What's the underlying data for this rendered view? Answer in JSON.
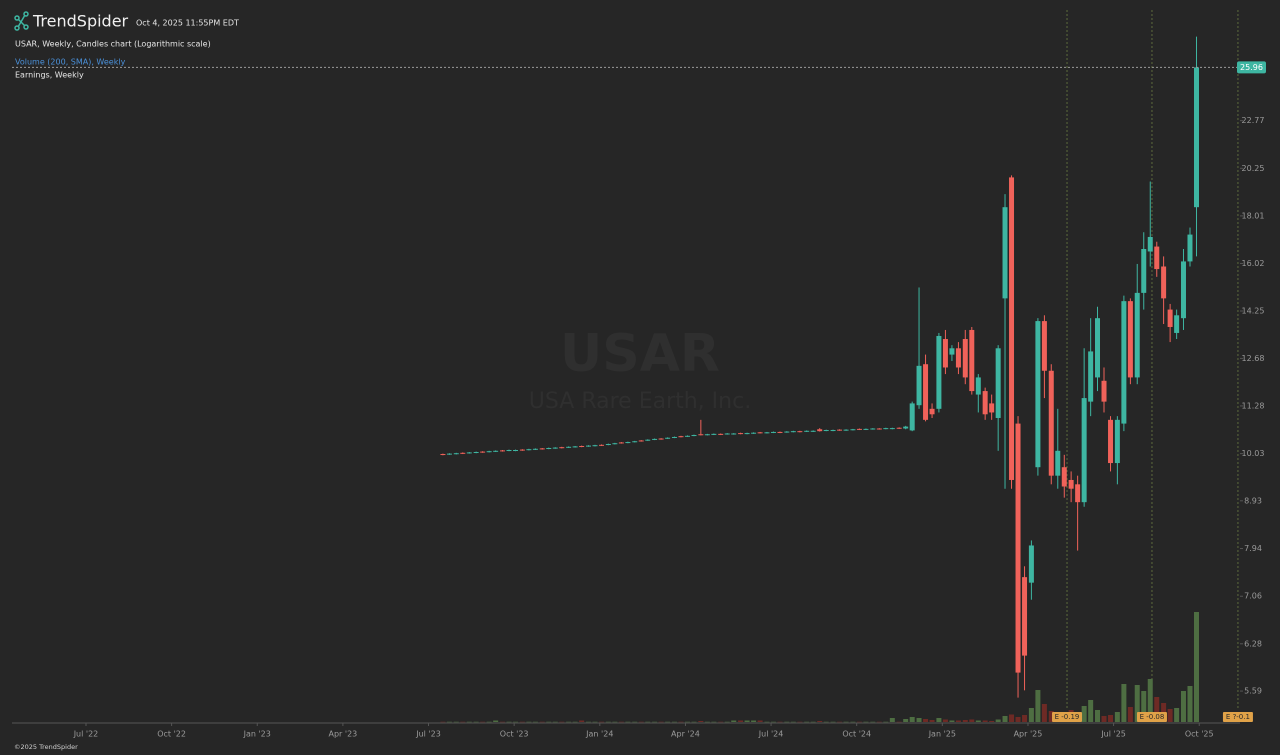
{
  "header": {
    "brand": "TrendSpider",
    "timestamp": "Oct 4, 2025 11:55PM EDT",
    "indicators": [
      "Volume (200, SMA), Weekly",
      "Earnings, Weekly"
    ]
  },
  "footer": "©2025 TrendSpider",
  "chart_data": {
    "type": "candlestick",
    "title": "USAR, Weekly, Candles chart (Logarithmic scale)",
    "watermark": "USAR",
    "watermark_subtitle": "USA Rare Earth, Inc.",
    "log_scale": true,
    "up_color": "#3eb6a2",
    "down_color": "#f0625a",
    "volume_up_color": "#4e6e42",
    "volume_down_color": "#6e2a25",
    "xlim": [
      2022.284,
      2025.869
    ],
    "ylim": [
      5.18,
      29.9
    ],
    "volume_lim": [
      0,
      28
    ],
    "xticks": [
      {
        "value": 2022.5,
        "label": "Jul '22"
      },
      {
        "value": 2022.75,
        "label": "Oct '22"
      },
      {
        "value": 2023.0,
        "label": "Jan '23"
      },
      {
        "value": 2023.25,
        "label": "Apr '23"
      },
      {
        "value": 2023.5,
        "label": "Jul '23"
      },
      {
        "value": 2023.75,
        "label": "Oct '23"
      },
      {
        "value": 2024.0,
        "label": "Jan '24"
      },
      {
        "value": 2024.25,
        "label": "Apr '24"
      },
      {
        "value": 2024.5,
        "label": "Jul '24"
      },
      {
        "value": 2024.75,
        "label": "Oct '24"
      },
      {
        "value": 2025.0,
        "label": "Jan '25"
      },
      {
        "value": 2025.25,
        "label": "Apr '25"
      },
      {
        "value": 2025.5,
        "label": "Jul '25"
      },
      {
        "value": 2025.75,
        "label": "Oct '25"
      }
    ],
    "yticks": [
      5.59,
      6.28,
      7.06,
      7.94,
      8.93,
      10.03,
      11.28,
      12.68,
      14.25,
      16.02,
      18.01,
      20.25,
      22.77
    ],
    "last_price": 25.96,
    "earnings": [
      {
        "x": 2025.364,
        "label": "E -0.19"
      },
      {
        "x": 2025.612,
        "label": "E -0.08"
      },
      {
        "x": 2025.863,
        "label": "E ?-0.1"
      }
    ],
    "x": [
      2023.542,
      2023.561,
      2023.581,
      2023.6,
      2023.619,
      2023.639,
      2023.658,
      2023.677,
      2023.696,
      2023.716,
      2023.735,
      2023.754,
      2023.774,
      2023.793,
      2023.812,
      2023.832,
      2023.851,
      2023.87,
      2023.889,
      2023.909,
      2023.928,
      2023.947,
      2023.967,
      2023.986,
      2024.005,
      2024.025,
      2024.044,
      2024.063,
      2024.082,
      2024.102,
      2024.121,
      2024.14,
      2024.16,
      2024.179,
      2024.198,
      2024.218,
      2024.237,
      2024.256,
      2024.275,
      2024.295,
      2024.314,
      2024.333,
      2024.353,
      2024.372,
      2024.391,
      2024.411,
      2024.43,
      2024.449,
      2024.468,
      2024.488,
      2024.507,
      2024.526,
      2024.546,
      2024.565,
      2024.584,
      2024.604,
      2024.623,
      2024.642,
      2024.661,
      2024.681,
      2024.7,
      2024.719,
      2024.739,
      2024.758,
      2024.777,
      2024.797,
      2024.816,
      2024.835,
      2024.854,
      2024.874,
      2024.893,
      2024.912,
      2024.932,
      2024.951,
      2024.97,
      2024.99,
      2025.009,
      2025.028,
      2025.047,
      2025.067,
      2025.086,
      2025.105,
      2025.125,
      2025.144,
      2025.163,
      2025.183,
      2025.202,
      2025.221,
      2025.24,
      2025.26,
      2025.279,
      2025.298,
      2025.318,
      2025.337,
      2025.356,
      2025.376,
      2025.395,
      2025.414,
      2025.433,
      2025.453,
      2025.472,
      2025.491,
      2025.511,
      2025.53,
      2025.549,
      2025.569,
      2025.588,
      2025.607,
      2025.626,
      2025.646,
      2025.665,
      2025.684,
      2025.704,
      2025.723,
      2025.742
    ],
    "open": [
      10.02,
      10.01,
      10.02,
      10.05,
      10.04,
      10.05,
      10.08,
      10.07,
      10.08,
      10.11,
      10.1,
      10.1,
      10.13,
      10.12,
      10.13,
      10.16,
      10.15,
      10.16,
      10.19,
      10.18,
      10.19,
      10.22,
      10.21,
      10.22,
      10.25,
      10.25,
      10.27,
      10.31,
      10.3,
      10.32,
      10.36,
      10.36,
      10.38,
      10.41,
      10.41,
      10.43,
      10.47,
      10.46,
      10.48,
      10.52,
      10.5,
      10.51,
      10.53,
      10.52,
      10.52,
      10.55,
      10.53,
      10.54,
      10.57,
      10.55,
      10.56,
      10.58,
      10.57,
      10.58,
      10.6,
      10.59,
      10.59,
      10.65,
      10.61,
      10.61,
      10.64,
      10.62,
      10.63,
      10.66,
      10.64,
      10.65,
      10.67,
      10.66,
      10.66,
      10.69,
      10.67,
      10.62,
      11.3,
      12.5,
      11.2,
      11.2,
      13.3,
      12.8,
      13.0,
      13.3,
      13.6,
      11.6,
      11.7,
      11.35,
      10.95,
      14.7,
      19.8,
      10.8,
      7.4,
      7.3,
      9.7,
      13.9,
      12.3,
      9.5,
      9.7,
      9.4,
      9.3,
      8.9,
      11.4,
      12.1,
      12.0,
      10.9,
      9.8,
      10.8,
      14.6,
      12.1,
      14.9,
      16.5,
      16.7,
      15.9,
      14.3,
      13.5,
      14.0,
      16.1,
      18.4
    ],
    "high": [
      10.03,
      10.04,
      10.05,
      10.06,
      10.07,
      10.08,
      10.09,
      10.1,
      10.11,
      10.12,
      10.13,
      10.13,
      10.14,
      10.15,
      10.16,
      10.17,
      10.18,
      10.19,
      10.2,
      10.21,
      10.22,
      10.23,
      10.24,
      10.25,
      10.26,
      10.28,
      10.3,
      10.32,
      10.33,
      10.35,
      10.37,
      10.39,
      10.41,
      10.42,
      10.44,
      10.46,
      10.48,
      10.49,
      10.51,
      10.9,
      10.53,
      10.54,
      10.54,
      10.55,
      10.55,
      10.56,
      10.56,
      10.57,
      10.58,
      10.58,
      10.59,
      10.59,
      10.6,
      10.61,
      10.61,
      10.62,
      10.62,
      10.68,
      10.64,
      10.64,
      10.65,
      10.65,
      10.66,
      10.67,
      10.67,
      10.68,
      10.68,
      10.69,
      10.69,
      10.7,
      10.74,
      11.4,
      15.1,
      12.8,
      11.35,
      13.5,
      13.6,
      13.1,
      13.2,
      13.6,
      13.7,
      12.2,
      11.8,
      11.6,
      13.1,
      19.0,
      19.9,
      11.0,
      7.6,
      8.1,
      14.0,
      14.1,
      12.5,
      11.2,
      10.0,
      9.6,
      9.5,
      13.0,
      14.0,
      14.4,
      12.4,
      11.0,
      11.0,
      14.8,
      14.7,
      16.0,
      17.3,
      19.6,
      16.9,
      16.3,
      14.5,
      14.3,
      16.6,
      17.5,
      28.0
    ],
    "low": [
      9.99,
      10.0,
      10.01,
      10.02,
      10.03,
      10.04,
      10.05,
      10.06,
      10.07,
      10.08,
      10.09,
      10.09,
      10.1,
      10.11,
      10.12,
      10.13,
      10.14,
      10.15,
      10.16,
      10.17,
      10.18,
      10.19,
      10.2,
      10.21,
      10.22,
      10.24,
      10.26,
      10.28,
      10.29,
      10.31,
      10.33,
      10.35,
      10.37,
      10.38,
      10.4,
      10.42,
      10.44,
      10.45,
      10.47,
      10.49,
      10.49,
      10.5,
      10.5,
      10.51,
      10.51,
      10.52,
      10.52,
      10.53,
      10.54,
      10.54,
      10.55,
      10.55,
      10.56,
      10.57,
      10.57,
      10.58,
      10.58,
      10.59,
      10.6,
      10.6,
      10.61,
      10.61,
      10.62,
      10.63,
      10.63,
      10.64,
      10.64,
      10.65,
      10.65,
      10.66,
      10.65,
      10.6,
      11.2,
      10.86,
      10.95,
      11.1,
      12.2,
      12.6,
      12.2,
      11.9,
      11.6,
      11.1,
      10.9,
      10.9,
      10.1,
      9.2,
      9.2,
      5.5,
      5.6,
      7.0,
      9.5,
      11.5,
      9.3,
      9.2,
      9.0,
      8.9,
      7.9,
      8.8,
      11.0,
      11.7,
      11.1,
      9.6,
      9.3,
      10.6,
      11.9,
      11.9,
      14.3,
      15.9,
      15.5,
      13.8,
      13.2,
      13.3,
      13.6,
      15.9,
      16.3
    ],
    "close": [
      10.0,
      10.03,
      10.04,
      10.03,
      10.06,
      10.07,
      10.06,
      10.09,
      10.1,
      10.09,
      10.12,
      10.12,
      10.11,
      10.14,
      10.15,
      10.14,
      10.17,
      10.18,
      10.17,
      10.2,
      10.21,
      10.2,
      10.23,
      10.24,
      10.23,
      10.27,
      10.29,
      10.29,
      10.32,
      10.34,
      10.34,
      10.38,
      10.4,
      10.39,
      10.43,
      10.45,
      10.45,
      10.48,
      10.5,
      10.5,
      10.52,
      10.53,
      10.51,
      10.54,
      10.54,
      10.53,
      10.55,
      10.56,
      10.55,
      10.57,
      10.58,
      10.56,
      10.59,
      10.6,
      10.58,
      10.61,
      10.61,
      10.6,
      10.63,
      10.63,
      10.62,
      10.64,
      10.65,
      10.64,
      10.66,
      10.67,
      10.65,
      10.68,
      10.68,
      10.67,
      10.72,
      11.35,
      12.45,
      10.9,
      11.05,
      13.4,
      12.4,
      13.0,
      12.4,
      12.1,
      11.7,
      12.1,
      11.05,
      11.1,
      13.0,
      18.4,
      9.4,
      5.85,
      6.1,
      8.0,
      13.9,
      12.3,
      9.5,
      10.1,
      9.25,
      9.2,
      8.9,
      11.5,
      12.9,
      14.0,
      11.4,
      9.8,
      10.9,
      14.6,
      12.1,
      14.9,
      16.6,
      17.1,
      15.8,
      14.7,
      13.7,
      14.1,
      16.1,
      17.2,
      25.96
    ],
    "volume": [
      0.05,
      0.05,
      0.05,
      0.05,
      0.05,
      0.05,
      0.05,
      0.05,
      0.3,
      0.05,
      0.05,
      0.05,
      0.05,
      0.05,
      0.05,
      0.05,
      0.05,
      0.05,
      0.05,
      0.05,
      0.05,
      0.3,
      0.05,
      0.05,
      0.05,
      0.05,
      0.05,
      0.05,
      0.05,
      0.05,
      0.05,
      0.05,
      0.05,
      0.05,
      0.05,
      0.05,
      0.05,
      0.05,
      0.05,
      0.2,
      0.05,
      0.05,
      0.05,
      0.05,
      0.3,
      0.3,
      0.3,
      0.3,
      0.3,
      0.05,
      0.05,
      0.05,
      0.05,
      0.05,
      0.05,
      0.05,
      0.05,
      0.2,
      0.05,
      0.05,
      0.05,
      0.05,
      0.05,
      0.05,
      0.05,
      0.05,
      0.05,
      0.05,
      0.8,
      0.05,
      0.6,
      1.0,
      0.8,
      0.6,
      0.4,
      0.8,
      0.5,
      0.3,
      0.3,
      0.4,
      0.5,
      0.3,
      0.3,
      0.2,
      0.5,
      1.2,
      1.5,
      1.0,
      1.4,
      2.8,
      6.4,
      3.6,
      2.2,
      2.0,
      1.8,
      2.4,
      1.6,
      3.2,
      4.4,
      2.4,
      1.2,
      1.4,
      2.0,
      7.6,
      3.0,
      7.4,
      6.2,
      8.6,
      5.0,
      3.8,
      2.6,
      2.8,
      6.2,
      7.2,
      22
    ]
  }
}
